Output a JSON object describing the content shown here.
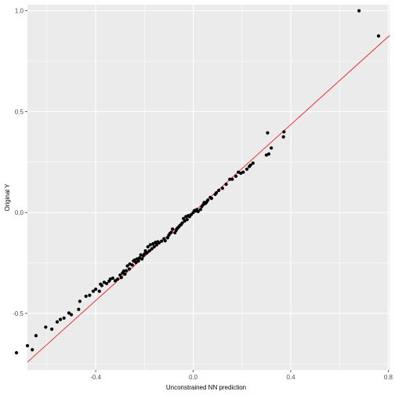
{
  "chart_data": {
    "type": "scatter",
    "title": "",
    "xlabel": "Unconstrained NN prediction",
    "ylabel": "Original Y",
    "xlim": [
      -0.68,
      0.805
    ],
    "ylim": [
      -0.78,
      1.03
    ],
    "xticks": [
      -0.4,
      0.0,
      0.4,
      0.8
    ],
    "xtick_labels": [
      "-0.4",
      "0.0",
      "0.4",
      "0.8"
    ],
    "yticks": [
      -0.5,
      0.0,
      0.5,
      1.0
    ],
    "ytick_labels": [
      "-0.5",
      "0.0",
      "0.5",
      "1.0"
    ],
    "grid": true,
    "background": "#ebebeb",
    "grid_color": "#ffffff",
    "point_color": "#000000",
    "line_color": "#ff0000",
    "reference_line": {
      "slope": 1.09,
      "intercept": 0.0
    },
    "points": [
      [
        -0.725,
        -0.695
      ],
      [
        -0.68,
        -0.66
      ],
      [
        -0.66,
        -0.68
      ],
      [
        -0.645,
        -0.61
      ],
      [
        -0.605,
        -0.568
      ],
      [
        -0.58,
        -0.578
      ],
      [
        -0.558,
        -0.542
      ],
      [
        -0.545,
        -0.53
      ],
      [
        -0.53,
        -0.523
      ],
      [
        -0.51,
        -0.498
      ],
      [
        -0.5,
        -0.506
      ],
      [
        -0.47,
        -0.48
      ],
      [
        -0.465,
        -0.44
      ],
      [
        -0.44,
        -0.415
      ],
      [
        -0.425,
        -0.41
      ],
      [
        -0.41,
        -0.39
      ],
      [
        -0.4,
        -0.38
      ],
      [
        -0.385,
        -0.39
      ],
      [
        -0.38,
        -0.355
      ],
      [
        -0.375,
        -0.362
      ],
      [
        -0.365,
        -0.346
      ],
      [
        -0.355,
        -0.352
      ],
      [
        -0.345,
        -0.34
      ],
      [
        -0.34,
        -0.33
      ],
      [
        -0.33,
        -0.325
      ],
      [
        -0.32,
        -0.338
      ],
      [
        -0.31,
        -0.33
      ],
      [
        -0.3,
        -0.31
      ],
      [
        -0.295,
        -0.322
      ],
      [
        -0.29,
        -0.3
      ],
      [
        -0.285,
        -0.29
      ],
      [
        -0.28,
        -0.305
      ],
      [
        -0.275,
        -0.288
      ],
      [
        -0.27,
        -0.265
      ],
      [
        -0.262,
        -0.28
      ],
      [
        -0.26,
        -0.255
      ],
      [
        -0.25,
        -0.26
      ],
      [
        -0.245,
        -0.24
      ],
      [
        -0.24,
        -0.235
      ],
      [
        -0.235,
        -0.248
      ],
      [
        -0.23,
        -0.23
      ],
      [
        -0.225,
        -0.24
      ],
      [
        -0.22,
        -0.225
      ],
      [
        -0.215,
        -0.21
      ],
      [
        -0.21,
        -0.23
      ],
      [
        -0.205,
        -0.215
      ],
      [
        -0.2,
        -0.205
      ],
      [
        -0.196,
        -0.19
      ],
      [
        -0.19,
        -0.2
      ],
      [
        -0.186,
        -0.17
      ],
      [
        -0.18,
        -0.19
      ],
      [
        -0.176,
        -0.16
      ],
      [
        -0.17,
        -0.18
      ],
      [
        -0.165,
        -0.155
      ],
      [
        -0.16,
        -0.17
      ],
      [
        -0.155,
        -0.148
      ],
      [
        -0.15,
        -0.16
      ],
      [
        -0.145,
        -0.145
      ],
      [
        -0.14,
        -0.15
      ],
      [
        -0.13,
        -0.142
      ],
      [
        -0.12,
        -0.13
      ],
      [
        -0.115,
        -0.14
      ],
      [
        -0.105,
        -0.125
      ],
      [
        -0.1,
        -0.112
      ],
      [
        -0.095,
        -0.103
      ],
      [
        -0.09,
        -0.098
      ],
      [
        -0.085,
        -0.082
      ],
      [
        -0.075,
        -0.1
      ],
      [
        -0.07,
        -0.088
      ],
      [
        -0.065,
        -0.078
      ],
      [
        -0.06,
        -0.072
      ],
      [
        -0.055,
        -0.065
      ],
      [
        -0.05,
        -0.06
      ],
      [
        -0.045,
        -0.052
      ],
      [
        -0.04,
        -0.03
      ],
      [
        -0.035,
        -0.042
      ],
      [
        -0.03,
        -0.02
      ],
      [
        -0.025,
        -0.035
      ],
      [
        -0.02,
        -0.015
      ],
      [
        -0.015,
        -0.02
      ],
      [
        -0.008,
        -0.01
      ],
      [
        0.0,
        0.0
      ],
      [
        0.005,
        0.01
      ],
      [
        0.01,
        0.008
      ],
      [
        0.015,
        0.015
      ],
      [
        0.02,
        0.005
      ],
      [
        0.03,
        0.015
      ],
      [
        0.035,
        0.03
      ],
      [
        0.04,
        0.038
      ],
      [
        0.045,
        0.05
      ],
      [
        0.05,
        0.045
      ],
      [
        0.055,
        0.052
      ],
      [
        0.06,
        0.062
      ],
      [
        0.07,
        0.075
      ],
      [
        0.075,
        0.07
      ],
      [
        0.09,
        0.09
      ],
      [
        0.095,
        0.098
      ],
      [
        0.105,
        0.11
      ],
      [
        0.12,
        0.12
      ],
      [
        0.135,
        0.14
      ],
      [
        0.15,
        0.165
      ],
      [
        0.16,
        0.165
      ],
      [
        0.175,
        0.18
      ],
      [
        0.185,
        0.2
      ],
      [
        0.195,
        0.195
      ],
      [
        0.205,
        0.2
      ],
      [
        0.22,
        0.215
      ],
      [
        0.23,
        0.228
      ],
      [
        0.235,
        0.235
      ],
      [
        0.245,
        0.245
      ],
      [
        0.3,
        0.285
      ],
      [
        0.305,
        0.395
      ],
      [
        0.31,
        0.29
      ],
      [
        0.32,
        0.32
      ],
      [
        0.37,
        0.375
      ],
      [
        0.372,
        0.4
      ],
      [
        0.68,
        1.0
      ],
      [
        0.76,
        0.875
      ]
    ]
  }
}
